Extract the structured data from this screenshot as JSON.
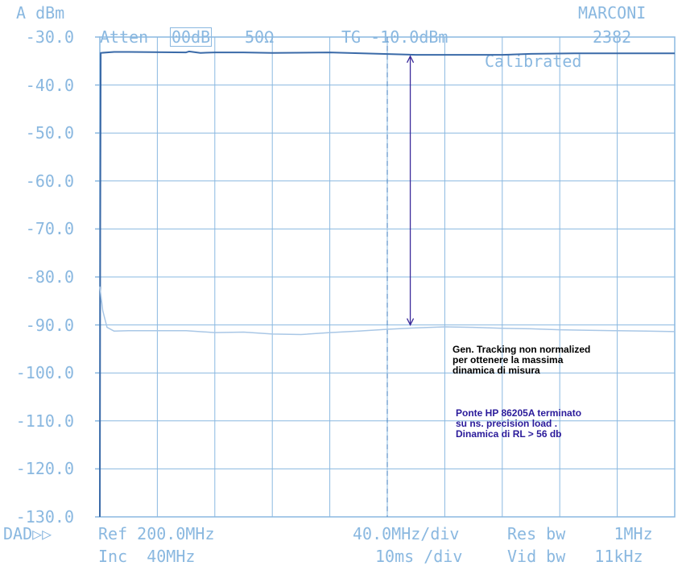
{
  "chart_data": {
    "type": "line",
    "header": {
      "unit_label": "A dBm",
      "brand": "MARCONI",
      "model": "2382",
      "atten_label": "Atten",
      "atten_value": "00dB",
      "impedance": "50Ω",
      "tg_label": "TG -10.0dBm",
      "status": "Calibrated"
    },
    "y_ticks": [
      "-30.0",
      "-40.0",
      "-50.0",
      "-60.0",
      "-70.0",
      "-80.0",
      "-90.0",
      "-100.0",
      "-110.0",
      "-120.0",
      "-130.0"
    ],
    "ylim": [
      -130,
      -30
    ],
    "xlim": [
      0,
      400
    ],
    "x_unit": "MHz",
    "footer": {
      "marker": "DAD▷▷",
      "ref": "Ref 200.0MHz",
      "inc": "Inc  40MHz",
      "span_div": "40.0MHz/div",
      "sweep_div": "10ms /div",
      "res_bw": "Res bw     1MHz",
      "vid_bw": "Vid bw   11kHz"
    },
    "series": [
      {
        "color": "#3a6aa8",
        "x": [
          0,
          0.3,
          0.6,
          10,
          20,
          60,
          62,
          70,
          80,
          100,
          120,
          160,
          220,
          280,
          300,
          330,
          360,
          390,
          400
        ],
        "y": [
          -130,
          -70,
          -33.3,
          -33.1,
          -33.1,
          -33.2,
          -33.0,
          -33.3,
          -33.2,
          -33.2,
          -33.3,
          -33.2,
          -33.7,
          -33.7,
          -33.5,
          -33.4,
          -33.4,
          -33.4,
          -33.4
        ]
      },
      {
        "color": "#a9c7e6",
        "x": [
          0,
          2,
          5,
          10,
          20,
          40,
          60,
          80,
          100,
          120,
          140,
          160,
          180,
          200,
          220,
          240,
          260,
          280,
          300,
          320,
          340,
          360,
          380,
          400
        ],
        "y": [
          -82,
          -87,
          -90.5,
          -91.3,
          -91.2,
          -91.2,
          -91.2,
          -91.6,
          -91.5,
          -91.9,
          -92.0,
          -91.6,
          -91.3,
          -90.9,
          -90.6,
          -90.4,
          -90.5,
          -90.7,
          -90.8,
          -91.0,
          -91.1,
          -91.2,
          -91.3,
          -91.4
        ]
      }
    ],
    "marker_line_x": 200,
    "annotation_arrow": {
      "x": 216,
      "y_from": -34,
      "y_to": -90
    },
    "annotations": [
      {
        "text": "Gen. Tracking non normalized\nper ottenere la massima\ndinamica di misura",
        "color": "#000000"
      },
      {
        "text": "Ponte HP 86205A terminato\nsu ns. precision load .\nDinamica di RL > 56 db",
        "color": "#2a1a9a"
      }
    ]
  }
}
